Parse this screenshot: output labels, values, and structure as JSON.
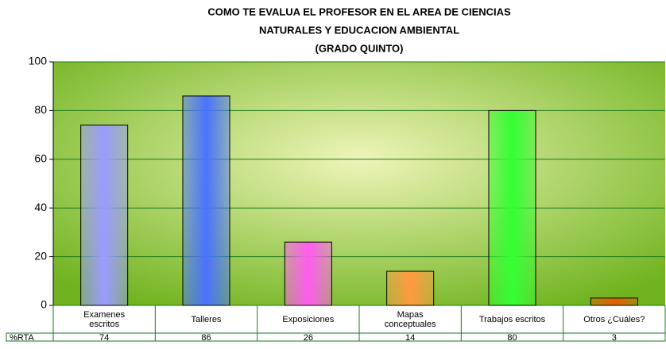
{
  "chart_data": {
    "type": "bar",
    "title": [
      "COMO TE EVALUA EL PROFESOR EN EL AREA DE CIENCIAS",
      "NATURALES Y EDUCACION AMBIENTAL",
      "(GRADO QUINTO)"
    ],
    "categories": [
      "Examenes escritos",
      "Talleres",
      "Exposiciones",
      "Mapas conceptuales",
      "Trabajos escritos",
      "Otros ¿Cuáles?"
    ],
    "series": [
      {
        "name": "%RTA",
        "values": [
          74,
          86,
          26,
          14,
          80,
          3
        ],
        "colors": [
          "#9b9bff",
          "#4a73ff",
          "#ff5cf0",
          "#ff9a40",
          "#33ff33",
          "#e06000"
        ]
      }
    ],
    "ylim": [
      0,
      100
    ],
    "yticks": [
      0,
      20,
      40,
      60,
      80,
      100
    ],
    "grid": true,
    "grid_color": "#1a7a1a",
    "plot_background": [
      "#eef5b8",
      "#6fb31e"
    ]
  }
}
